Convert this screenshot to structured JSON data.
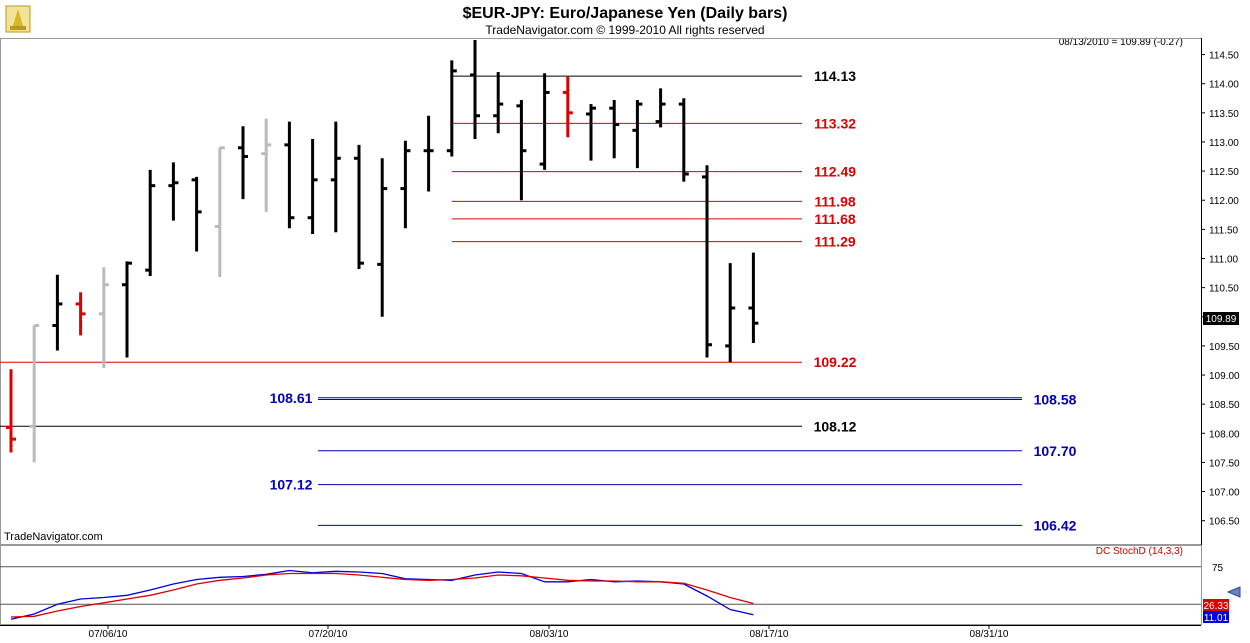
{
  "header": {
    "title": "$EUR-JPY:  Euro/Japanese Yen  (Daily bars)",
    "copyright": "TradeNavigator.com © 1999-2010 All rights reserved",
    "quote": "08/13/2010 = 109.89 (-0.27)",
    "watermark": "TradeNavigator.com"
  },
  "colors": {
    "up_bar": "#000000",
    "down_bar_highlight": "#dd0000",
    "inside_bar": "#bbbbbb",
    "resistance": "#dd0000",
    "support": "#0000bb",
    "pivot": "#000000",
    "stoch_k": "#0000dd",
    "stoch_d": "#dd0000"
  },
  "chart_data": [
    {
      "type": "ohlc",
      "ylim": [
        106.1,
        114.75
      ],
      "y_ticks": [
        "114.50",
        "114.00",
        "113.50",
        "113.00",
        "112.50",
        "112.00",
        "111.50",
        "111.00",
        "110.50",
        "110.00",
        "109.50",
        "109.00",
        "108.50",
        "108.00",
        "107.50",
        "107.00",
        "106.50"
      ],
      "x_ticks": [
        "07/06/10",
        "07/20/10",
        "08/03/10",
        "08/17/10",
        "08/31/10"
      ],
      "last_price_label": "109.89",
      "bars": [
        {
          "o": 108.1,
          "h": 109.1,
          "l": 107.67,
          "c": 107.9,
          "color": "red"
        },
        {
          "o": 108.12,
          "h": 109.85,
          "l": 107.5,
          "c": 109.85,
          "color": "gray"
        },
        {
          "o": 109.85,
          "h": 110.72,
          "l": 109.42,
          "c": 110.22,
          "color": "black"
        },
        {
          "o": 110.22,
          "h": 110.42,
          "l": 109.68,
          "c": 110.05,
          "color": "red"
        },
        {
          "o": 110.05,
          "h": 110.85,
          "l": 109.12,
          "c": 110.55,
          "color": "gray"
        },
        {
          "o": 110.55,
          "h": 110.95,
          "l": 109.3,
          "c": 110.92,
          "color": "black"
        },
        {
          "o": 110.8,
          "h": 112.52,
          "l": 110.7,
          "c": 112.25,
          "color": "black"
        },
        {
          "o": 112.25,
          "h": 112.65,
          "l": 111.65,
          "c": 112.3,
          "color": "black"
        },
        {
          "o": 112.35,
          "h": 112.4,
          "l": 111.12,
          "c": 111.8,
          "color": "black"
        },
        {
          "o": 111.55,
          "h": 112.9,
          "l": 110.68,
          "c": 112.9,
          "color": "gray"
        },
        {
          "o": 112.9,
          "h": 113.27,
          "l": 112.02,
          "c": 112.75,
          "color": "black"
        },
        {
          "o": 112.8,
          "h": 113.4,
          "l": 111.8,
          "c": 112.95,
          "color": "gray"
        },
        {
          "o": 112.95,
          "h": 113.35,
          "l": 111.52,
          "c": 111.7,
          "color": "black"
        },
        {
          "o": 111.7,
          "h": 113.05,
          "l": 111.42,
          "c": 112.35,
          "color": "black"
        },
        {
          "o": 112.35,
          "h": 113.35,
          "l": 111.45,
          "c": 112.72,
          "color": "black"
        },
        {
          "o": 112.72,
          "h": 112.95,
          "l": 110.82,
          "c": 110.92,
          "color": "black"
        },
        {
          "o": 110.9,
          "h": 112.72,
          "l": 110.0,
          "c": 112.2,
          "color": "black"
        },
        {
          "o": 112.2,
          "h": 113.02,
          "l": 111.52,
          "c": 112.85,
          "color": "black"
        },
        {
          "o": 112.85,
          "h": 113.45,
          "l": 112.15,
          "c": 112.85,
          "color": "black"
        },
        {
          "o": 112.85,
          "h": 114.4,
          "l": 112.75,
          "c": 114.22,
          "color": "black"
        },
        {
          "o": 114.15,
          "h": 114.75,
          "l": 113.05,
          "c": 113.45,
          "color": "black"
        },
        {
          "o": 113.45,
          "h": 114.2,
          "l": 113.15,
          "c": 113.65,
          "color": "black"
        },
        {
          "o": 113.62,
          "h": 113.72,
          "l": 112.0,
          "c": 112.85,
          "color": "black"
        },
        {
          "o": 112.62,
          "h": 114.18,
          "l": 112.52,
          "c": 113.85,
          "color": "black"
        },
        {
          "o": 113.85,
          "h": 114.12,
          "l": 113.08,
          "c": 113.5,
          "color": "red"
        },
        {
          "o": 113.48,
          "h": 113.65,
          "l": 112.68,
          "c": 113.58,
          "color": "black"
        },
        {
          "o": 113.58,
          "h": 113.72,
          "l": 112.72,
          "c": 113.3,
          "color": "black"
        },
        {
          "o": 113.2,
          "h": 113.72,
          "l": 112.55,
          "c": 113.65,
          "color": "black"
        },
        {
          "o": 113.35,
          "h": 113.92,
          "l": 113.25,
          "c": 113.65,
          "color": "black"
        },
        {
          "o": 113.65,
          "h": 113.75,
          "l": 112.32,
          "c": 112.45,
          "color": "black"
        },
        {
          "o": 112.4,
          "h": 112.6,
          "l": 109.3,
          "c": 109.52,
          "color": "black"
        },
        {
          "o": 109.5,
          "h": 110.92,
          "l": 109.22,
          "c": 110.15,
          "color": "black"
        },
        {
          "o": 110.15,
          "h": 111.1,
          "l": 109.55,
          "c": 109.89,
          "color": "black"
        }
      ],
      "levels": [
        {
          "value": 114.13,
          "label": "114.13",
          "kind": "pivot",
          "side": "right"
        },
        {
          "value": 113.32,
          "label": "113.32",
          "kind": "resistance",
          "side": "right"
        },
        {
          "value": 112.49,
          "label": "112.49",
          "kind": "resistance",
          "side": "right"
        },
        {
          "value": 111.98,
          "label": "111.98",
          "kind": "resistance",
          "side": "right"
        },
        {
          "value": 111.68,
          "label": "111.68",
          "kind": "resistance",
          "side": "right"
        },
        {
          "value": 111.29,
          "label": "111.29",
          "kind": "resistance",
          "side": "right"
        },
        {
          "value": 109.22,
          "label": "109.22",
          "kind": "resistance",
          "side": "right"
        },
        {
          "value": 108.12,
          "label": "108.12",
          "kind": "pivot",
          "side": "right"
        },
        {
          "value": 108.61,
          "label": "108.61",
          "kind": "support",
          "side": "left"
        },
        {
          "value": 108.58,
          "label": "108.58",
          "kind": "support",
          "side": "far-right"
        },
        {
          "value": 107.7,
          "label": "107.70",
          "kind": "support",
          "side": "far-right"
        },
        {
          "value": 107.12,
          "label": "107.12",
          "kind": "support",
          "side": "left"
        },
        {
          "value": 106.42,
          "label": "106.42",
          "kind": "support",
          "side": "far-right"
        }
      ]
    },
    {
      "type": "line",
      "title": "DC StochD (14,3,3)",
      "ylim": [
        0,
        100
      ],
      "reference_lines": [
        75,
        25
      ],
      "y_ticks": [
        "75"
      ],
      "last_values": [
        "26.33",
        "11.01"
      ],
      "series": [
        {
          "name": "%K",
          "color": "blue",
          "values": [
            5,
            12,
            25,
            32,
            34,
            37,
            44,
            52,
            58,
            61,
            62,
            65,
            70,
            67,
            69,
            68,
            66,
            59,
            58,
            57,
            64,
            68,
            66,
            55,
            55,
            58,
            55,
            56,
            55,
            52,
            36,
            18,
            11
          ]
        },
        {
          "name": "%D",
          "color": "red",
          "values": [
            8,
            9,
            16,
            22,
            27,
            32,
            37,
            44,
            52,
            57,
            60,
            64,
            66,
            66,
            66,
            64,
            61,
            58,
            57,
            58,
            60,
            64,
            63,
            60,
            57,
            56,
            56,
            55,
            55,
            53,
            44,
            34,
            26
          ]
        }
      ]
    }
  ]
}
